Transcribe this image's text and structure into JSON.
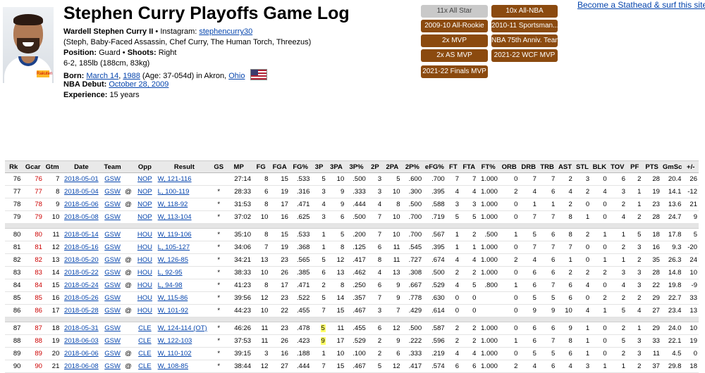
{
  "header": {
    "title": "Stephen Curry Playoffs Game Log",
    "full_name": "Wardell Stephen Curry II",
    "instagram_label": "Instagram:",
    "instagram_handle": "stephencurry30",
    "nicknames": "(Steph, Baby-Faced Assassin, Chef Curry, The Human Torch, Threezus)",
    "position_label": "Position:",
    "position": "Guard",
    "shoots_label": "Shoots:",
    "shoots": "Right",
    "size": "6-2, 185lb (188cm, 83kg)",
    "born_label": "Born:",
    "born_date": "March 14",
    "born_year": "1988",
    "born_age": "(Age: 37-054d) in Akron,",
    "born_state": "Ohio",
    "debut_label": "NBA Debut:",
    "debut_date": "October 28, 2009",
    "experience_label": "Experience:",
    "experience": "15 years"
  },
  "badges": [
    "11x All Star",
    "10x All-NBA",
    "2009-10 All-Rookie",
    "2010-11 Sportsman...",
    "2x MVP",
    "NBA 75th Anniv. Team",
    "2x AS MVP",
    "2021-22 WCF MVP",
    "2021-22 Finals MVP"
  ],
  "promo_link": "Become a Stathead & surf this site ad",
  "table": {
    "columns": [
      "Rk",
      "Gcar",
      "Gtm",
      "Date",
      "Team",
      "",
      "Opp",
      "Result",
      "GS",
      "MP",
      "FG",
      "FGA",
      "FG%",
      "3P",
      "3PA",
      "3P%",
      "2P",
      "2PA",
      "2P%",
      "eFG%",
      "FT",
      "FTA",
      "FT%",
      "ORB",
      "DRB",
      "TRB",
      "AST",
      "STL",
      "BLK",
      "TOV",
      "PF",
      "PTS",
      "GmSc",
      "+/-"
    ],
    "rows": [
      [
        "76",
        "76",
        "7",
        "2018-05-01",
        "GSW",
        "",
        "NOP",
        "W, 121-116",
        "",
        "27:14",
        "8",
        "15",
        ".533",
        "5",
        "10",
        ".500",
        "3",
        "5",
        ".600",
        ".700",
        "7",
        "7",
        "1.000",
        "0",
        "7",
        "7",
        "2",
        "3",
        "0",
        "6",
        "2",
        "28",
        "20.4",
        "26"
      ],
      [
        "77",
        "77",
        "8",
        "2018-05-04",
        "GSW",
        "@",
        "NOP",
        "L, 100-119",
        "*",
        "28:33",
        "6",
        "19",
        ".316",
        "3",
        "9",
        ".333",
        "3",
        "10",
        ".300",
        ".395",
        "4",
        "4",
        "1.000",
        "2",
        "4",
        "6",
        "4",
        "2",
        "4",
        "3",
        "1",
        "19",
        "14.1",
        "-12"
      ],
      [
        "78",
        "78",
        "9",
        "2018-05-06",
        "GSW",
        "@",
        "NOP",
        "W, 118-92",
        "*",
        "31:53",
        "8",
        "17",
        ".471",
        "4",
        "9",
        ".444",
        "4",
        "8",
        ".500",
        ".588",
        "3",
        "3",
        "1.000",
        "0",
        "1",
        "1",
        "2",
        "0",
        "0",
        "2",
        "1",
        "23",
        "13.6",
        "21"
      ],
      [
        "79",
        "79",
        "10",
        "2018-05-08",
        "GSW",
        "",
        "NOP",
        "W, 113-104",
        "*",
        "37:02",
        "10",
        "16",
        ".625",
        "3",
        "6",
        ".500",
        "7",
        "10",
        ".700",
        ".719",
        "5",
        "5",
        "1.000",
        "0",
        "7",
        "7",
        "8",
        "1",
        "0",
        "4",
        "2",
        "28",
        "24.7",
        "9"
      ],
      null,
      [
        "80",
        "80",
        "11",
        "2018-05-14",
        "GSW",
        "",
        "HOU",
        "W, 119-106",
        "*",
        "35:10",
        "8",
        "15",
        ".533",
        "1",
        "5",
        ".200",
        "7",
        "10",
        ".700",
        ".567",
        "1",
        "2",
        ".500",
        "1",
        "5",
        "6",
        "8",
        "2",
        "1",
        "1",
        "5",
        "18",
        "17.8",
        "5"
      ],
      [
        "81",
        "81",
        "12",
        "2018-05-16",
        "GSW",
        "",
        "HOU",
        "L, 105-127",
        "*",
        "34:06",
        "7",
        "19",
        ".368",
        "1",
        "8",
        ".125",
        "6",
        "11",
        ".545",
        ".395",
        "1",
        "1",
        "1.000",
        "0",
        "7",
        "7",
        "7",
        "0",
        "0",
        "2",
        "3",
        "16",
        "9.3",
        "-20"
      ],
      [
        "82",
        "82",
        "13",
        "2018-05-20",
        "GSW",
        "@",
        "HOU",
        "W, 126-85",
        "*",
        "34:21",
        "13",
        "23",
        ".565",
        "5",
        "12",
        ".417",
        "8",
        "11",
        ".727",
        ".674",
        "4",
        "4",
        "1.000",
        "2",
        "4",
        "6",
        "1",
        "0",
        "1",
        "1",
        "2",
        "35",
        "26.3",
        "24"
      ],
      [
        "83",
        "83",
        "14",
        "2018-05-22",
        "GSW",
        "@",
        "HOU",
        "L, 92-95",
        "*",
        "38:33",
        "10",
        "26",
        ".385",
        "6",
        "13",
        ".462",
        "4",
        "13",
        ".308",
        ".500",
        "2",
        "2",
        "1.000",
        "0",
        "6",
        "6",
        "2",
        "2",
        "2",
        "3",
        "3",
        "28",
        "14.8",
        "10"
      ],
      [
        "84",
        "84",
        "15",
        "2018-05-24",
        "GSW",
        "@",
        "HOU",
        "L, 94-98",
        "*",
        "41:23",
        "8",
        "17",
        ".471",
        "2",
        "8",
        ".250",
        "6",
        "9",
        ".667",
        ".529",
        "4",
        "5",
        ".800",
        "1",
        "6",
        "7",
        "6",
        "4",
        "0",
        "4",
        "3",
        "22",
        "19.8",
        "-9"
      ],
      [
        "85",
        "85",
        "16",
        "2018-05-26",
        "GSW",
        "",
        "HOU",
        "W, 115-86",
        "*",
        "39:56",
        "12",
        "23",
        ".522",
        "5",
        "14",
        ".357",
        "7",
        "9",
        ".778",
        ".630",
        "0",
        "0",
        "",
        "0",
        "5",
        "5",
        "6",
        "0",
        "2",
        "2",
        "2",
        "29",
        "22.7",
        "33"
      ],
      [
        "86",
        "86",
        "17",
        "2018-05-28",
        "GSW",
        "@",
        "HOU",
        "W, 101-92",
        "*",
        "44:23",
        "10",
        "22",
        ".455",
        "7",
        "15",
        ".467",
        "3",
        "7",
        ".429",
        ".614",
        "0",
        "0",
        "",
        "0",
        "9",
        "9",
        "10",
        "4",
        "1",
        "5",
        "4",
        "27",
        "23.4",
        "13"
      ],
      null,
      [
        "87",
        "87",
        "18",
        "2018-05-31",
        "GSW",
        "",
        "CLE",
        "W, 124-114 (OT)",
        "*",
        "46:26",
        "11",
        "23",
        ".478",
        "5",
        "11",
        ".455",
        "6",
        "12",
        ".500",
        ".587",
        "2",
        "2",
        "1.000",
        "0",
        "6",
        "6",
        "9",
        "1",
        "0",
        "2",
        "1",
        "29",
        "24.0",
        "10"
      ],
      [
        "88",
        "88",
        "19",
        "2018-06-03",
        "GSW",
        "",
        "CLE",
        "W, 122-103",
        "*",
        "37:53",
        "11",
        "26",
        ".423",
        "9",
        "17",
        ".529",
        "2",
        "9",
        ".222",
        ".596",
        "2",
        "2",
        "1.000",
        "1",
        "6",
        "7",
        "8",
        "1",
        "0",
        "5",
        "3",
        "33",
        "22.1",
        "19"
      ],
      [
        "89",
        "89",
        "20",
        "2018-06-06",
        "GSW",
        "@",
        "CLE",
        "W, 110-102",
        "*",
        "39:15",
        "3",
        "16",
        ".188",
        "1",
        "10",
        ".100",
        "2",
        "6",
        ".333",
        ".219",
        "4",
        "4",
        "1.000",
        "0",
        "5",
        "5",
        "6",
        "1",
        "0",
        "2",
        "3",
        "11",
        "4.5",
        "0"
      ],
      [
        "90",
        "90",
        "21",
        "2018-06-08",
        "GSW",
        "@",
        "CLE",
        "W, 108-85",
        "*",
        "38:44",
        "12",
        "27",
        ".444",
        "7",
        "15",
        ".467",
        "5",
        "12",
        ".417",
        ".574",
        "6",
        "6",
        "1.000",
        "2",
        "4",
        "6",
        "4",
        "3",
        "1",
        "1",
        "2",
        "37",
        "29.8",
        "18"
      ]
    ]
  },
  "highlight_3p_rows": [
    "87",
    "88"
  ],
  "colors": {
    "badge": "#8b4a0f",
    "badge_grey": "#c9c9c9",
    "link": "#0645ad",
    "gcar_red": "#cc0000",
    "highlight": "#ffff66"
  }
}
